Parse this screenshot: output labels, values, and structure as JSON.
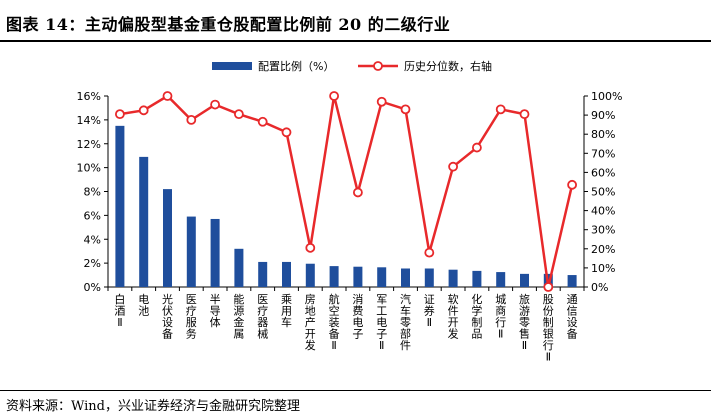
{
  "figure": {
    "title": "图表 14：主动偏股型基金重仓股配置比例前 20 的二级行业",
    "source": "资料来源：Wind，兴业证券经济与金融研究院整理"
  },
  "colors": {
    "bar": "#1f4e9c",
    "line": "#e8292b",
    "marker_fill": "#ffffff"
  },
  "chart_data": {
    "type": "bar",
    "categories": [
      "白酒Ⅱ",
      "电池",
      "光伏设备",
      "医疗服务",
      "半导体",
      "能源金属",
      "医疗器械",
      "乘用车",
      "房地产开发",
      "航空装备Ⅱ",
      "消费电子",
      "军工电子Ⅱ",
      "汽车零部件",
      "证券Ⅱ",
      "软件开发",
      "化学制品",
      "城商行Ⅱ",
      "旅游零售Ⅱ",
      "股份制银行Ⅱ",
      "通信设备"
    ],
    "series": [
      {
        "name": "配置比例（%）",
        "type": "bar",
        "axis": "left",
        "values": [
          13.5,
          10.9,
          8.2,
          5.9,
          5.7,
          3.2,
          2.1,
          2.1,
          1.95,
          1.75,
          1.7,
          1.65,
          1.55,
          1.55,
          1.45,
          1.35,
          1.25,
          1.1,
          1.1,
          1.0
        ]
      },
      {
        "name": "历史分位数，右轴",
        "type": "line",
        "axis": "right",
        "values": [
          0.905,
          0.925,
          1.0,
          0.875,
          0.955,
          0.905,
          0.865,
          0.81,
          0.205,
          1.0,
          0.495,
          0.97,
          0.93,
          0.18,
          0.63,
          0.73,
          0.93,
          0.905,
          0.0,
          0.535
        ]
      }
    ],
    "y_left": {
      "ylim": [
        0,
        16
      ],
      "ticks": [
        "0%",
        "2%",
        "4%",
        "6%",
        "8%",
        "10%",
        "12%",
        "14%",
        "16%"
      ]
    },
    "y_right": {
      "ylim": [
        0,
        1
      ],
      "ticks": [
        "0%",
        "10%",
        "20%",
        "30%",
        "40%",
        "50%",
        "60%",
        "70%",
        "80%",
        "90%",
        "100%"
      ]
    },
    "grid": false,
    "legend_position": "top-center"
  }
}
